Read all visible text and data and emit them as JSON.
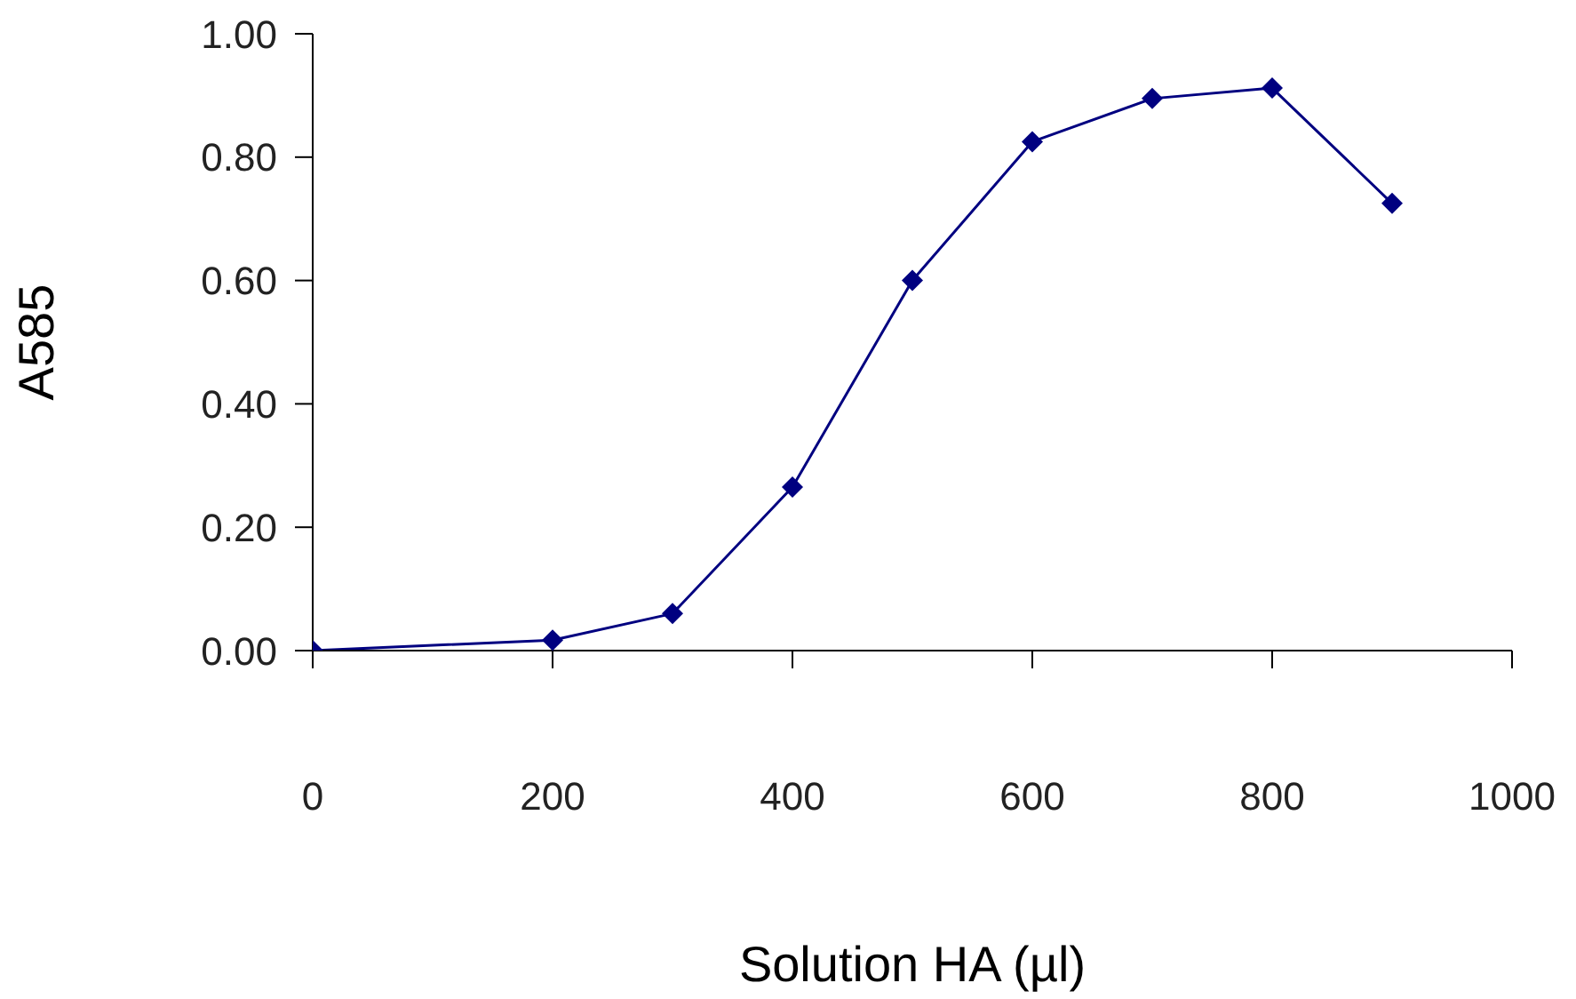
{
  "chart_data": {
    "type": "line",
    "xlabel": "Solution HA (µl)",
    "ylabel": "A585",
    "x": [
      0,
      200,
      300,
      400,
      500,
      600,
      700,
      800,
      900
    ],
    "series": [
      {
        "color": "#000080",
        "values": [
          0,
          0.017,
          0.06,
          0.265,
          0.6,
          0.825,
          0.895,
          0.912,
          0.725
        ]
      }
    ],
    "xlim": [
      0,
      1000
    ],
    "xticks": [
      0,
      200,
      400,
      600,
      800,
      1000
    ],
    "ylim": [
      0,
      1
    ],
    "yticks": [
      {
        "value": 0,
        "label": "0.00"
      },
      {
        "value": 0.2,
        "label": "0.20"
      },
      {
        "value": 0.4,
        "label": "0.40"
      },
      {
        "value": 0.6,
        "label": "0.60"
      },
      {
        "value": 0.8,
        "label": "0.80"
      },
      {
        "value": 1,
        "label": "1.00"
      }
    ],
    "grid": false,
    "legend": false,
    "marker": "diamond",
    "line_style": "solid"
  }
}
